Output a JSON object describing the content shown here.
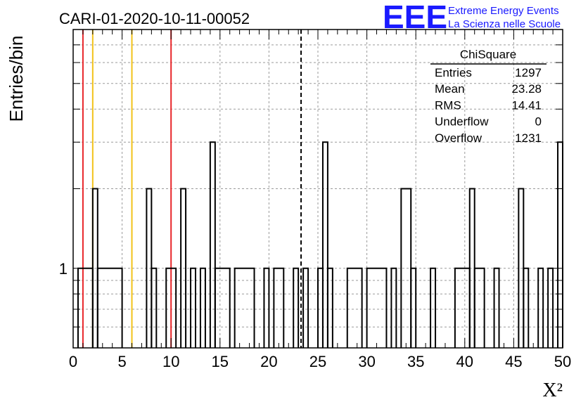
{
  "chart_data": {
    "type": "histogram",
    "title": "CARI-01-2020-10-11-00052",
    "xlabel": "X²",
    "ylabel": "Entries/bin",
    "xlim": [
      0,
      50
    ],
    "y_scale": "log",
    "ylim": [
      0.5,
      8
    ],
    "x_ticks": [
      "0",
      "5",
      "10",
      "15",
      "20",
      "25",
      "30",
      "35",
      "40",
      "45",
      "50"
    ],
    "y_tick_labels": [
      "1"
    ],
    "grid": true,
    "bin_width": 0.5,
    "bins": [
      {
        "x0": 0.5,
        "x1": 2.0,
        "y": 1
      },
      {
        "x0": 2.0,
        "x1": 2.5,
        "y": 2
      },
      {
        "x0": 2.5,
        "x1": 5.0,
        "y": 1
      },
      {
        "x0": 7.5,
        "x1": 8.0,
        "y": 2
      },
      {
        "x0": 8.0,
        "x1": 8.5,
        "y": 1
      },
      {
        "x0": 9.5,
        "x1": 10.5,
        "y": 1
      },
      {
        "x0": 11.0,
        "x1": 11.5,
        "y": 2
      },
      {
        "x0": 12.0,
        "x1": 12.5,
        "y": 1
      },
      {
        "x0": 13.0,
        "x1": 13.5,
        "y": 1
      },
      {
        "x0": 14.0,
        "x1": 14.5,
        "y": 3
      },
      {
        "x0": 14.5,
        "x1": 16.0,
        "y": 1
      },
      {
        "x0": 16.5,
        "x1": 18.5,
        "y": 1
      },
      {
        "x0": 19.5,
        "x1": 20.0,
        "y": 1
      },
      {
        "x0": 20.5,
        "x1": 21.5,
        "y": 1
      },
      {
        "x0": 22.5,
        "x1": 23.0,
        "y": 1
      },
      {
        "x0": 23.5,
        "x1": 24.0,
        "y": 1
      },
      {
        "x0": 25.0,
        "x1": 25.5,
        "y": 1
      },
      {
        "x0": 25.5,
        "x1": 26.0,
        "y": 3
      },
      {
        "x0": 26.0,
        "x1": 26.5,
        "y": 1
      },
      {
        "x0": 28.0,
        "x1": 29.5,
        "y": 1
      },
      {
        "x0": 30.0,
        "x1": 32.0,
        "y": 1
      },
      {
        "x0": 32.5,
        "x1": 33.0,
        "y": 1
      },
      {
        "x0": 33.5,
        "x1": 34.5,
        "y": 2
      },
      {
        "x0": 34.5,
        "x1": 35.0,
        "y": 1
      },
      {
        "x0": 36.5,
        "x1": 37.0,
        "y": 1
      },
      {
        "x0": 39.0,
        "x1": 40.5,
        "y": 1
      },
      {
        "x0": 40.5,
        "x1": 41.0,
        "y": 2
      },
      {
        "x0": 41.0,
        "x1": 42.0,
        "y": 1
      },
      {
        "x0": 43.0,
        "x1": 43.5,
        "y": 1
      },
      {
        "x0": 45.5,
        "x1": 46.0,
        "y": 2
      },
      {
        "x0": 46.0,
        "x1": 46.5,
        "y": 1
      },
      {
        "x0": 47.5,
        "x1": 48.0,
        "y": 1
      },
      {
        "x0": 48.5,
        "x1": 49.0,
        "y": 1
      },
      {
        "x0": 49.5,
        "x1": 50.0,
        "y": 3
      }
    ],
    "vertical_lines": [
      {
        "x": 1.0,
        "color": "#e8262a",
        "style": "solid"
      },
      {
        "x": 2.0,
        "color": "#f2c21a",
        "style": "solid"
      },
      {
        "x": 6.0,
        "color": "#f2c21a",
        "style": "solid"
      },
      {
        "x": 10.0,
        "color": "#e8262a",
        "style": "solid"
      },
      {
        "x": 23.28,
        "color": "#000000",
        "style": "dashed"
      }
    ],
    "stats_box": {
      "title": "ChiSquare",
      "rows": [
        {
          "label": "Entries",
          "value": "1297"
        },
        {
          "label": "Mean",
          "value": "23.28"
        },
        {
          "label": "RMS",
          "value": "14.41"
        },
        {
          "label": "Underflow",
          "value": "0"
        },
        {
          "label": "Overflow",
          "value": "1231"
        }
      ]
    }
  },
  "logo": {
    "mark": "EEE",
    "line1": "Extreme Energy Events",
    "line2": "La Scienza nelle Scuole",
    "color": "#1a1aff"
  }
}
